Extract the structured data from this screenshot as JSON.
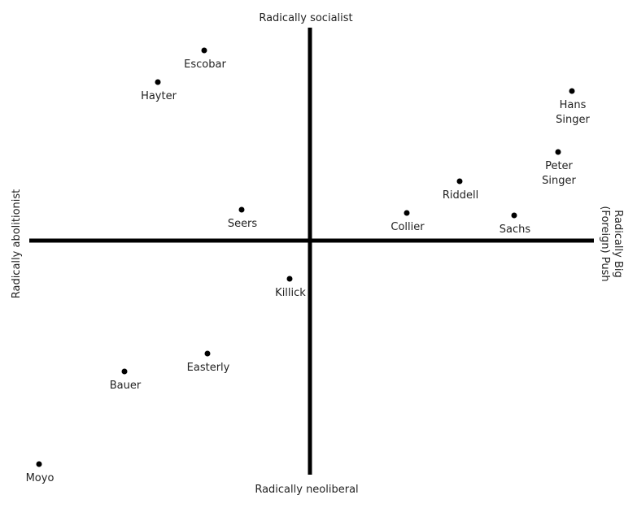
{
  "diagram": {
    "axes": {
      "top": "Radically socialist",
      "bottom": "Radically neoliberal",
      "left": "Radically abolitionist",
      "right": [
        "Radically Big",
        "(Foreign) Push"
      ]
    },
    "points": [
      {
        "name": [
          "Escobar"
        ]
      },
      {
        "name": [
          "Hayter"
        ]
      },
      {
        "name": [
          "Hans",
          "Singer"
        ]
      },
      {
        "name": [
          "Peter",
          "Singer"
        ]
      },
      {
        "name": [
          "Riddell"
        ]
      },
      {
        "name": [
          "Seers"
        ]
      },
      {
        "name": [
          "Collier"
        ]
      },
      {
        "name": [
          "Sachs"
        ]
      },
      {
        "name": [
          "Killick"
        ]
      },
      {
        "name": [
          "Easterly"
        ]
      },
      {
        "name": [
          "Bauer"
        ]
      },
      {
        "name": [
          "Moyo"
        ]
      }
    ]
  }
}
